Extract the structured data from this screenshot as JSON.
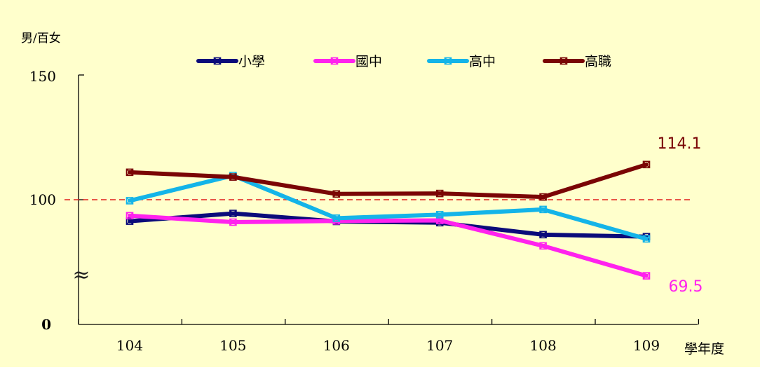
{
  "chart_data": {
    "type": "line",
    "y_unit_label": "男/百女",
    "xlabel": "學年度",
    "categories": [
      "104",
      "105",
      "106",
      "107",
      "108",
      "109"
    ],
    "y_tick_labels": [
      "150",
      "100",
      "0"
    ],
    "y_break_symbol": "≈",
    "reference_line": {
      "value": 100,
      "color": "#e0201a",
      "style": "dashed"
    },
    "legend_position": "top-center",
    "series": [
      {
        "name": "小學",
        "color": "#0b0b7a",
        "values": [
          91.4,
          94.5,
          91.3,
          90.8,
          86.0,
          85.2
        ]
      },
      {
        "name": "國中",
        "color": "#ff22ee",
        "values": [
          93.6,
          91.0,
          91.5,
          91.7,
          81.5,
          69.5
        ]
      },
      {
        "name": "高中",
        "color": "#14b4e8",
        "values": [
          99.6,
          109.7,
          92.6,
          94.0,
          96.1,
          84.3
        ]
      },
      {
        "name": "高職",
        "color": "#7a0505",
        "values": [
          111.0,
          109.1,
          102.3,
          102.5,
          101.1,
          114.1
        ]
      }
    ],
    "data_labels": [
      {
        "series": "高職",
        "category": "109",
        "text": "114.1",
        "color": "#7a0505"
      },
      {
        "series": "國中",
        "category": "109",
        "text": "69.5",
        "color": "#ff22ee"
      }
    ],
    "style": {
      "background": "#ffffcc"
    }
  }
}
